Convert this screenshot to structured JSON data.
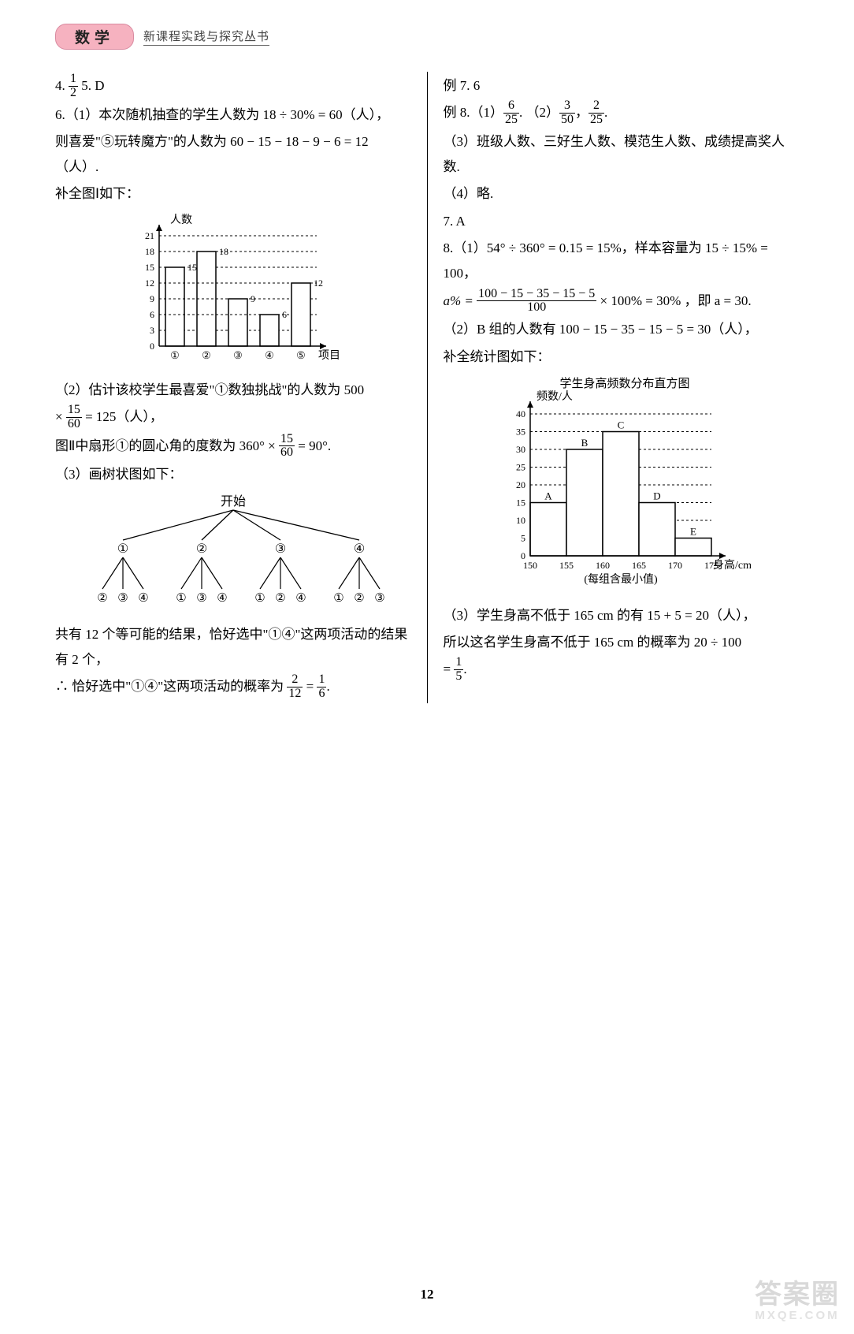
{
  "header": {
    "subject": "数学",
    "series": "新课程实践与探究丛书"
  },
  "left": {
    "l1a": "4. ",
    "l1b": "   5. D",
    "frac_half": {
      "n": "1",
      "d": "2"
    },
    "l2": "6.（1）本次随机抽查的学生人数为 18 ÷ 30% = 60（人），",
    "l3": "则喜爱\"⑤玩转魔方\"的人数为 60 − 15 − 18 − 9 − 6 = 12（人）.",
    "l4": "补全图Ⅰ如下：",
    "chart1": {
      "type": "bar",
      "ylabel": "人数",
      "xlabel": "项目",
      "categories": [
        "①",
        "②",
        "③",
        "④",
        "⑤"
      ],
      "values": [
        15,
        18,
        9,
        6,
        12
      ],
      "labels": [
        "15",
        "18",
        "9",
        "6",
        "12"
      ],
      "ytick_step": 3,
      "ylim": [
        0,
        21
      ],
      "bar_color": "#ffffff",
      "border_color": "#000000",
      "grid_color": "#000000"
    },
    "l5a": "（2）估计该校学生最喜爱\"①数独挑战\"的人数为 500",
    "l5b": " × ",
    "frac_1560": {
      "n": "15",
      "d": "60"
    },
    "l5c": " = 125（人），",
    "l6a": "图Ⅱ中扇形①的圆心角的度数为 360° × ",
    "l6b": " = 90°.",
    "l7": "（3）画树状图如下：",
    "tree": {
      "root": "开始",
      "level1": [
        "①",
        "②",
        "③",
        "④"
      ],
      "level2": [
        [
          "②",
          "③",
          "④"
        ],
        [
          "①",
          "③",
          "④"
        ],
        [
          "①",
          "②",
          "④"
        ],
        [
          "①",
          "②",
          "③"
        ]
      ]
    },
    "l8": "共有 12 个等可能的结果，恰好选中\"①④\"这两项活动的结果有 2 个，",
    "l9a": "∴ 恰好选中\"①④\"这两项活动的概率为 ",
    "frac_212": {
      "n": "2",
      "d": "12"
    },
    "l9b": " = ",
    "frac_16": {
      "n": "1",
      "d": "6"
    },
    "l9c": "."
  },
  "right": {
    "r1": "例 7. 6",
    "r2a": "例 8.（1）",
    "frac_625": {
      "n": "6",
      "d": "25"
    },
    "r2b": ".   （2）",
    "frac_350": {
      "n": "3",
      "d": "50"
    },
    "r2c": "，",
    "frac_225": {
      "n": "2",
      "d": "25"
    },
    "r2d": ".",
    "r3": "（3）班级人数、三好生人数、模范生人数、成绩提高奖人数.",
    "r4": "（4）略.",
    "r5": "7. A",
    "r6": "8.（1）54° ÷ 360° = 0.15 = 15%，样本容量为 15 ÷ 15% = 100，",
    "r7a": "a% = ",
    "frac_big": {
      "n": "100 − 15 − 35 − 15 − 5",
      "d": "100"
    },
    "r7b": " × 100% = 30% ，即 a = 30.",
    "r8": "（2）B 组的人数有 100 − 15 − 35 − 15 − 5 = 30（人），",
    "r9": "补全统计图如下：",
    "chart2": {
      "type": "bar",
      "title": "学生身高频数分布直方图",
      "ylabel": "频数/人",
      "xlabel": "身高/cm",
      "xnote": "(每组含最小值)",
      "x_ticks": [
        "150",
        "155",
        "160",
        "165",
        "170",
        "175"
      ],
      "values": [
        15,
        30,
        35,
        15,
        5
      ],
      "bar_labels": [
        "A",
        "B",
        "C",
        "D",
        "E"
      ],
      "ylim": [
        0,
        40
      ],
      "ytick_step": 5,
      "bar_color": "#ffffff",
      "border_color": "#000000"
    },
    "r10": "（3）学生身高不低于 165 cm 的有 15 + 5 = 20（人），",
    "r11a": "所以这名学生身高不低于 165 cm 的概率为 20 ÷ 100",
    "r11b": " = ",
    "frac_15": {
      "n": "1",
      "d": "5"
    },
    "r11c": "."
  },
  "page_number": "12",
  "watermark": {
    "line1": "答案圈",
    "line2": "MXQE.COM"
  }
}
